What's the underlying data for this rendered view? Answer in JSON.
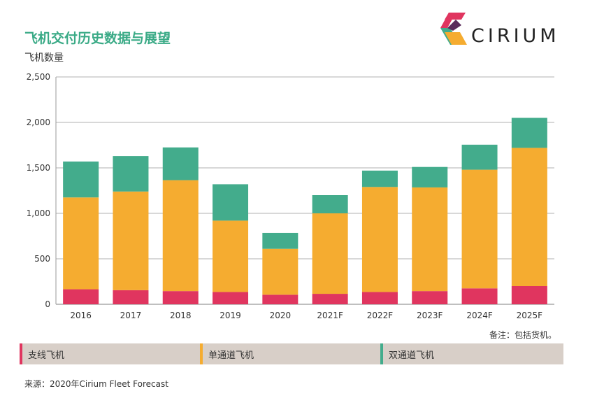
{
  "header": {
    "title": "飞机交付历史数据与展望",
    "y_axis_label": "飞机数量",
    "brand": "CIRIUM"
  },
  "note": "备注：包括货机。",
  "source": "来源：2020年Cirium Fleet Forecast",
  "legend": [
    {
      "label": "支线飞机",
      "color": "#e0355f"
    },
    {
      "label": "单通道飞机",
      "color": "#f5ac30"
    },
    {
      "label": "双通道飞机",
      "color": "#43ac8c"
    }
  ],
  "chart_data": {
    "type": "bar",
    "stacked": true,
    "ylabel": "飞机数量",
    "ylim": [
      0,
      2500
    ],
    "yticks": [
      "0",
      "500",
      "1,000",
      "1,500",
      "2,000",
      "2,500"
    ],
    "grid": true,
    "legend_position": "bottom",
    "categories": [
      "2016",
      "2017",
      "2018",
      "2019",
      "2020",
      "2021F",
      "2022F",
      "2023F",
      "2024F",
      "2025F"
    ],
    "series": [
      {
        "name": "支线飞机",
        "color": "#e0355f",
        "values": [
          165,
          155,
          145,
          135,
          105,
          115,
          135,
          145,
          175,
          200
        ]
      },
      {
        "name": "单通道飞机",
        "color": "#f5ac30",
        "values": [
          1010,
          1085,
          1220,
          785,
          505,
          885,
          1155,
          1140,
          1305,
          1520
        ]
      },
      {
        "name": "双通道飞机",
        "color": "#43ac8c",
        "values": [
          395,
          390,
          360,
          400,
          175,
          200,
          180,
          225,
          275,
          330
        ]
      }
    ]
  }
}
